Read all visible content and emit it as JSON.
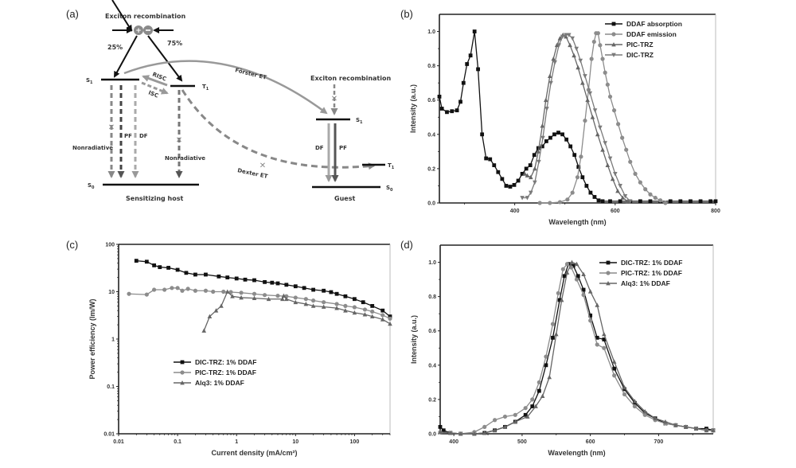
{
  "figure": {
    "panels": [
      "(a)",
      "(b)",
      "(c)",
      "(d)"
    ]
  },
  "diagram": {
    "title_top": "Exciton recombination",
    "singlet_pct": "25%",
    "triplet_pct": "75%",
    "host_S1": "S",
    "host_S1_sub": "1",
    "host_T1": "T",
    "host_T1_sub": "1",
    "host_S0": "S",
    "host_S0_sub": "0",
    "risc": "RISC",
    "isc": "ISC",
    "pf": "PF",
    "df": "DF",
    "nonrad_left": "Nonradiative",
    "nonrad_right": "Nonradiative",
    "host_label": "Sensitizing host",
    "forster": "Förster ET",
    "dexter": "Dexter ET",
    "guest_exciton": "Exciton recombination",
    "guest_S1": "S",
    "guest_S1_sub": "1",
    "guest_T1": "T",
    "guest_T1_sub": "1",
    "guest_S0": "S",
    "guest_S0_sub": "0",
    "guest_df": "DF",
    "guest_pf": "PF",
    "guest_label": "Guest"
  },
  "chart_data": [
    {
      "id": "b",
      "type": "line",
      "title": "",
      "xlabel": "Wavelength (nm)",
      "ylabel": "Intensity (a.u.)",
      "xlim": [
        250,
        800
      ],
      "ylim": [
        0,
        1.1
      ],
      "xticks": [
        400,
        600,
        800
      ],
      "yticks": [
        0.0,
        0.2,
        0.4,
        0.6,
        0.8,
        1.0
      ],
      "ytick_labels": [
        "0.0",
        "0.2",
        "0.4",
        "0.6",
        "0.8",
        "1.0"
      ],
      "legend": "top-right",
      "grid": false,
      "series": [
        {
          "name": "DDAF absorption",
          "color": "#111111",
          "marker": "square",
          "x": [
            250,
            255,
            265,
            275,
            285,
            292,
            298,
            305,
            312,
            320,
            327,
            335,
            343,
            351,
            359,
            367,
            375,
            383,
            391,
            399,
            407,
            415,
            423,
            431,
            439,
            447,
            455,
            463,
            471,
            479,
            487,
            495,
            503,
            511,
            519,
            527,
            535,
            543,
            551,
            559,
            567,
            575,
            590,
            610,
            630,
            650,
            670,
            690,
            710,
            730,
            750,
            770,
            790,
            800
          ],
          "y": [
            0.62,
            0.55,
            0.53,
            0.535,
            0.54,
            0.59,
            0.7,
            0.81,
            0.86,
            1.0,
            0.78,
            0.4,
            0.26,
            0.255,
            0.22,
            0.18,
            0.14,
            0.1,
            0.095,
            0.105,
            0.13,
            0.17,
            0.2,
            0.22,
            0.28,
            0.32,
            0.33,
            0.36,
            0.38,
            0.4,
            0.41,
            0.4,
            0.37,
            0.33,
            0.28,
            0.21,
            0.15,
            0.1,
            0.06,
            0.035,
            0.015,
            0.01,
            0.01,
            0.01,
            0.01,
            0.01,
            0.01,
            0.01,
            0.01,
            0.01,
            0.01,
            0.01,
            0.01,
            0.01
          ]
        },
        {
          "name": "DDAF emission",
          "color": "#8c8c8c",
          "marker": "circle",
          "x": [
            450,
            470,
            490,
            505,
            515,
            525,
            532,
            540,
            547,
            553,
            558,
            562,
            566,
            570,
            575,
            580,
            585,
            590,
            598,
            606,
            614,
            622,
            630,
            640,
            650,
            660,
            670,
            680,
            690,
            700
          ],
          "y": [
            0.0,
            0.0,
            0.005,
            0.02,
            0.06,
            0.15,
            0.27,
            0.48,
            0.66,
            0.84,
            0.94,
            0.99,
            0.99,
            0.92,
            0.84,
            0.76,
            0.69,
            0.62,
            0.54,
            0.46,
            0.38,
            0.31,
            0.24,
            0.17,
            0.12,
            0.08,
            0.05,
            0.03,
            0.015,
            0.0
          ]
        },
        {
          "name": "PIC-TRZ",
          "color": "#666666",
          "marker": "triangle-up",
          "x": [
            420,
            425,
            432,
            440,
            447,
            455,
            462,
            470,
            477,
            484,
            490,
            496,
            502,
            510,
            518,
            526,
            535,
            545,
            555,
            565,
            575,
            585,
            595,
            605,
            615,
            625
          ],
          "y": [
            0.17,
            0.16,
            0.15,
            0.2,
            0.3,
            0.45,
            0.6,
            0.74,
            0.84,
            0.92,
            0.96,
            0.98,
            0.97,
            0.92,
            0.86,
            0.79,
            0.7,
            0.6,
            0.5,
            0.4,
            0.31,
            0.22,
            0.14,
            0.07,
            0.03,
            0.01
          ]
        },
        {
          "name": "DIC-TRZ",
          "color": "#7a7a7a",
          "marker": "triangle-down",
          "x": [
            415,
            425,
            432,
            440,
            448,
            456,
            464,
            472,
            480,
            488,
            495,
            502,
            508,
            515,
            523,
            531,
            540,
            550,
            560,
            570,
            580,
            590,
            600,
            610,
            620,
            630
          ],
          "y": [
            0.03,
            0.03,
            0.06,
            0.12,
            0.24,
            0.38,
            0.55,
            0.7,
            0.82,
            0.92,
            0.97,
            0.98,
            0.98,
            0.96,
            0.9,
            0.83,
            0.74,
            0.64,
            0.54,
            0.44,
            0.35,
            0.26,
            0.17,
            0.1,
            0.04,
            0.01
          ]
        }
      ]
    },
    {
      "id": "c",
      "type": "line",
      "title": "",
      "xlabel": "Current density (mA/cm²)",
      "ylabel": "Power efficiency (lm/W)",
      "xscale": "log",
      "yscale": "log",
      "xlim": [
        0.01,
        400
      ],
      "ylim": [
        0.01,
        100
      ],
      "xticks": [
        0.01,
        0.1,
        1,
        10,
        100
      ],
      "xtick_labels": [
        "0.01",
        "0.1",
        "1",
        "10",
        "100"
      ],
      "yticks": [
        0.01,
        0.1,
        1,
        10,
        100
      ],
      "ytick_labels": [
        "0.01",
        "0.1",
        "1",
        "10",
        "100"
      ],
      "legend": "center-left",
      "grid": false,
      "series": [
        {
          "name": "DIC-TRZ: 1% DDAF",
          "color": "#111111",
          "marker": "square",
          "x": [
            0.02,
            0.03,
            0.04,
            0.05,
            0.07,
            0.1,
            0.14,
            0.2,
            0.3,
            0.5,
            0.7,
            1,
            1.4,
            2,
            3,
            4,
            5,
            7,
            10,
            14,
            20,
            30,
            40,
            50,
            70,
            100,
            140,
            200,
            300,
            400
          ],
          "y": [
            45,
            43,
            36,
            33,
            32,
            29,
            25,
            23,
            23,
            21,
            20,
            19,
            18,
            17.5,
            16,
            15.5,
            15,
            14,
            13,
            12,
            11,
            10.5,
            9.8,
            9,
            8,
            7,
            6,
            5,
            4,
            3
          ]
        },
        {
          "name": "PIC-TRZ: 1% DDAF",
          "color": "#8c8c8c",
          "marker": "circle",
          "x": [
            0.015,
            0.03,
            0.04,
            0.06,
            0.08,
            0.1,
            0.12,
            0.15,
            0.2,
            0.3,
            0.4,
            0.6,
            0.8,
            1.2,
            2,
            3,
            5,
            7,
            10,
            15,
            20,
            30,
            50,
            70,
            100,
            150,
            200,
            300,
            400
          ],
          "y": [
            9,
            8.7,
            11,
            11,
            12,
            12,
            10.5,
            11.5,
            10.5,
            10.5,
            10,
            10,
            9.8,
            9.5,
            9,
            8.5,
            8.2,
            8,
            7.5,
            7,
            6.5,
            6,
            5.5,
            5,
            4.7,
            4.2,
            3.8,
            3.2,
            2.7
          ]
        },
        {
          "name": "Alq3: 1% DDAF",
          "color": "#666666",
          "marker": "triangle-up",
          "x": [
            0.28,
            0.35,
            0.45,
            0.55,
            0.7,
            0.85,
            1.2,
            2,
            3.5,
            6,
            6.3,
            7,
            10,
            15,
            20,
            30,
            50,
            70,
            100,
            150,
            200,
            300,
            400
          ],
          "y": [
            1.5,
            3,
            4,
            5,
            10,
            8,
            7.5,
            7.3,
            7,
            7,
            8.2,
            7,
            6,
            5.5,
            5,
            4.8,
            4.5,
            4,
            3.6,
            3.3,
            3,
            2.6,
            2.1
          ]
        }
      ]
    },
    {
      "id": "d",
      "type": "line",
      "title": "",
      "xlabel": "Wavelength (nm)",
      "ylabel": "Intensity (a.u.)",
      "xlim": [
        380,
        780
      ],
      "ylim": [
        0,
        1.1
      ],
      "xticks": [
        400,
        500,
        600,
        700
      ],
      "yticks": [
        0.0,
        0.2,
        0.4,
        0.6,
        0.8,
        1.0
      ],
      "ytick_labels": [
        "0.0",
        "0.2",
        "0.4",
        "0.6",
        "0.8",
        "1.0"
      ],
      "legend": "top-right",
      "grid": false,
      "series": [
        {
          "name": "DIC-TRZ: 1% DDAF",
          "color": "#111111",
          "marker": "square",
          "x": [
            380,
            385,
            395,
            410,
            430,
            445,
            460,
            475,
            490,
            505,
            515,
            525,
            535,
            545,
            555,
            562,
            568,
            575,
            582,
            590,
            600,
            610,
            620,
            635,
            650,
            665,
            680,
            695,
            710,
            725,
            740,
            755,
            770,
            780
          ],
          "y": [
            0.04,
            0.02,
            0.005,
            0.0,
            0.0,
            0.005,
            0.02,
            0.04,
            0.07,
            0.11,
            0.16,
            0.25,
            0.4,
            0.56,
            0.78,
            0.92,
            0.99,
            0.98,
            0.92,
            0.84,
            0.69,
            0.56,
            0.55,
            0.38,
            0.26,
            0.18,
            0.12,
            0.09,
            0.06,
            0.05,
            0.04,
            0.03,
            0.03,
            0.02
          ]
        },
        {
          "name": "PIC-TRZ: 1% DDAF",
          "color": "#8c8c8c",
          "marker": "circle",
          "x": [
            380,
            395,
            410,
            430,
            445,
            460,
            475,
            490,
            505,
            515,
            525,
            535,
            545,
            553,
            560,
            566,
            572,
            580,
            590,
            600,
            610,
            620,
            635,
            650,
            665,
            680,
            695,
            710,
            725,
            740,
            755,
            770,
            780
          ],
          "y": [
            0.01,
            0.005,
            0.0,
            0.01,
            0.04,
            0.08,
            0.1,
            0.11,
            0.15,
            0.2,
            0.3,
            0.45,
            0.64,
            0.82,
            0.96,
            0.99,
            0.97,
            0.9,
            0.81,
            0.66,
            0.52,
            0.5,
            0.34,
            0.23,
            0.16,
            0.11,
            0.08,
            0.06,
            0.05,
            0.04,
            0.03,
            0.02,
            0.02
          ]
        },
        {
          "name": "Alq3: 1% DDAF",
          "color": "#666666",
          "marker": "triangle-up",
          "x": [
            380,
            395,
            410,
            430,
            445,
            460,
            475,
            490,
            508,
            520,
            530,
            540,
            550,
            558,
            566,
            573,
            580,
            590,
            600,
            610,
            620,
            635,
            650,
            665,
            680,
            695,
            710,
            725,
            740,
            755,
            770,
            780
          ],
          "y": [
            0.01,
            0.005,
            0.0,
            0.0,
            0.005,
            0.02,
            0.04,
            0.07,
            0.1,
            0.16,
            0.22,
            0.33,
            0.58,
            0.78,
            0.94,
            1.0,
            0.99,
            0.93,
            0.83,
            0.75,
            0.58,
            0.42,
            0.27,
            0.19,
            0.13,
            0.09,
            0.07,
            0.05,
            0.04,
            0.03,
            0.02,
            0.02
          ]
        }
      ]
    }
  ]
}
